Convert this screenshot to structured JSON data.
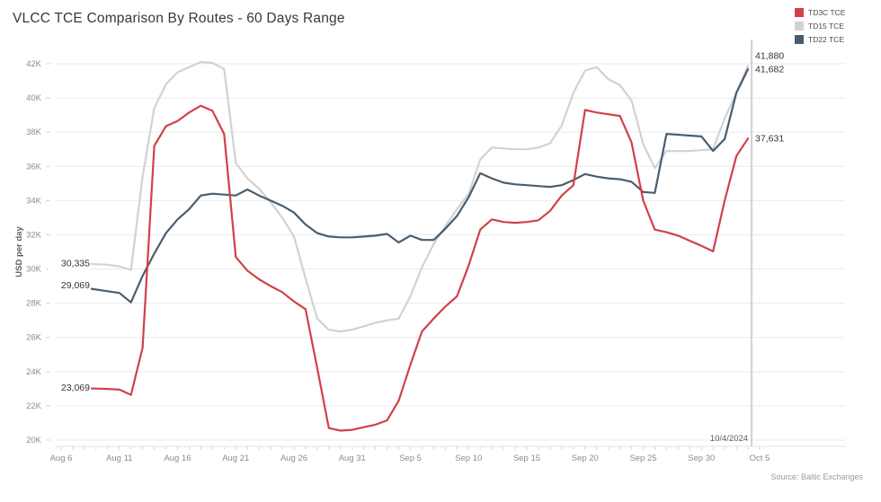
{
  "page": {
    "title": "VLCC TCE Comparison By Routes - 60 Days Range",
    "source": "Source: Baltic Exchanges"
  },
  "legend": {
    "position": "top-right",
    "items": [
      {
        "label": "TD3C TCE",
        "color": "#d2404a"
      },
      {
        "label": "TD15 TCE",
        "color": "#d2d2d2"
      },
      {
        "label": "TD22 TCE",
        "color": "#4a5d6e"
      }
    ]
  },
  "chart_data": {
    "type": "line",
    "title": "VLCC TCE Comparison By Routes - 60 Days Range",
    "xlabel": "",
    "ylabel": "USD per day",
    "ylim": [
      20000,
      42000
    ],
    "ytick_step": 2000,
    "ytick_labels": [
      "20K",
      "22K",
      "24K",
      "26K",
      "28K",
      "30K",
      "32K",
      "34K",
      "36K",
      "38K",
      "40K",
      "42K"
    ],
    "xtick_labels": [
      "Aug 6",
      "Aug 11",
      "Aug 16",
      "Aug 21",
      "Aug 26",
      "Aug 31",
      "Sep 5",
      "Sep 10",
      "Sep 15",
      "Sep 20",
      "Sep 25",
      "Sep 30",
      "Oct 5"
    ],
    "xtick_interval_days": 5,
    "x_total_days": 60,
    "grid": "horizontal",
    "legend_position": "top-right",
    "reference_line": {
      "label": "10/4/2024",
      "day": 59
    },
    "x": [
      "Aug 6",
      "Aug 7",
      "Aug 8",
      "Aug 9",
      "Aug 10",
      "Aug 11",
      "Aug 12",
      "Aug 13",
      "Aug 14",
      "Aug 15",
      "Aug 16",
      "Aug 17",
      "Aug 18",
      "Aug 19",
      "Aug 20",
      "Aug 21",
      "Aug 22",
      "Aug 23",
      "Aug 24",
      "Aug 25",
      "Aug 26",
      "Aug 27",
      "Aug 28",
      "Aug 29",
      "Aug 30",
      "Aug 31",
      "Sep 1",
      "Sep 2",
      "Sep 3",
      "Sep 4",
      "Sep 5",
      "Sep 6",
      "Sep 7",
      "Sep 8",
      "Sep 9",
      "Sep 10",
      "Sep 11",
      "Sep 12",
      "Sep 13",
      "Sep 14",
      "Sep 15",
      "Sep 16",
      "Sep 17",
      "Sep 18",
      "Sep 19",
      "Sep 20",
      "Sep 21",
      "Sep 22",
      "Sep 23",
      "Sep 24",
      "Sep 25",
      "Sep 26",
      "Sep 27",
      "Sep 28",
      "Sep 29",
      "Sep 30",
      "Oct 1",
      "Oct 2",
      "Oct 3",
      "Oct 4"
    ],
    "series": [
      {
        "name": "TD15 TCE",
        "color": "#d2d2d2",
        "start_label": "30,335",
        "end_label": "41,880",
        "values": [
          30335,
          30320,
          30300,
          30280,
          30250,
          30150,
          29950,
          35400,
          39400,
          40800,
          41500,
          41800,
          42100,
          42050,
          41700,
          36200,
          35300,
          34700,
          33900,
          33000,
          31900,
          29450,
          27100,
          26450,
          26350,
          26450,
          26650,
          26850,
          27000,
          27100,
          28400,
          30100,
          31450,
          32500,
          33500,
          34400,
          36400,
          37100,
          37050,
          37000,
          37000,
          37100,
          37350,
          38400,
          40300,
          41600,
          41800,
          41100,
          40750,
          39850,
          37300,
          35900,
          36900,
          36900,
          36900,
          36950,
          37000,
          38800,
          40300,
          41880
        ]
      },
      {
        "name": "TD22 TCE",
        "color": "#4a5d6e",
        "start_label": "29,069",
        "end_label": "41,682",
        "values": [
          29069,
          29000,
          28900,
          28800,
          28700,
          28600,
          28050,
          29600,
          30900,
          32100,
          32900,
          33500,
          34300,
          34400,
          34350,
          34300,
          34650,
          34300,
          34000,
          33700,
          33300,
          32600,
          32100,
          31900,
          31850,
          31850,
          31900,
          31950,
          32050,
          31550,
          31950,
          31700,
          31700,
          32350,
          33100,
          34200,
          35600,
          35300,
          35050,
          34950,
          34900,
          34850,
          34800,
          34900,
          35200,
          35550,
          35400,
          35300,
          35250,
          35100,
          34500,
          34450,
          37900,
          37850,
          37800,
          37750,
          36900,
          37600,
          40300,
          41682
        ]
      },
      {
        "name": "TD3C TCE",
        "color": "#d2404a",
        "start_label": "23,069",
        "end_label": "37,631",
        "values": [
          23069,
          23050,
          23030,
          23010,
          22990,
          22950,
          22640,
          25400,
          37200,
          38350,
          38650,
          39150,
          39550,
          39250,
          37900,
          30700,
          29900,
          29400,
          29000,
          28650,
          28100,
          27650,
          24200,
          20700,
          20550,
          20600,
          20750,
          20900,
          21150,
          22300,
          24400,
          26350,
          27100,
          27800,
          28400,
          30200,
          32300,
          32900,
          32750,
          32700,
          32750,
          32850,
          33400,
          34300,
          34900,
          39300,
          39150,
          39050,
          38950,
          37400,
          34000,
          32300,
          32150,
          31950,
          31650,
          31350,
          31030,
          34000,
          36600,
          37631
        ]
      }
    ]
  }
}
